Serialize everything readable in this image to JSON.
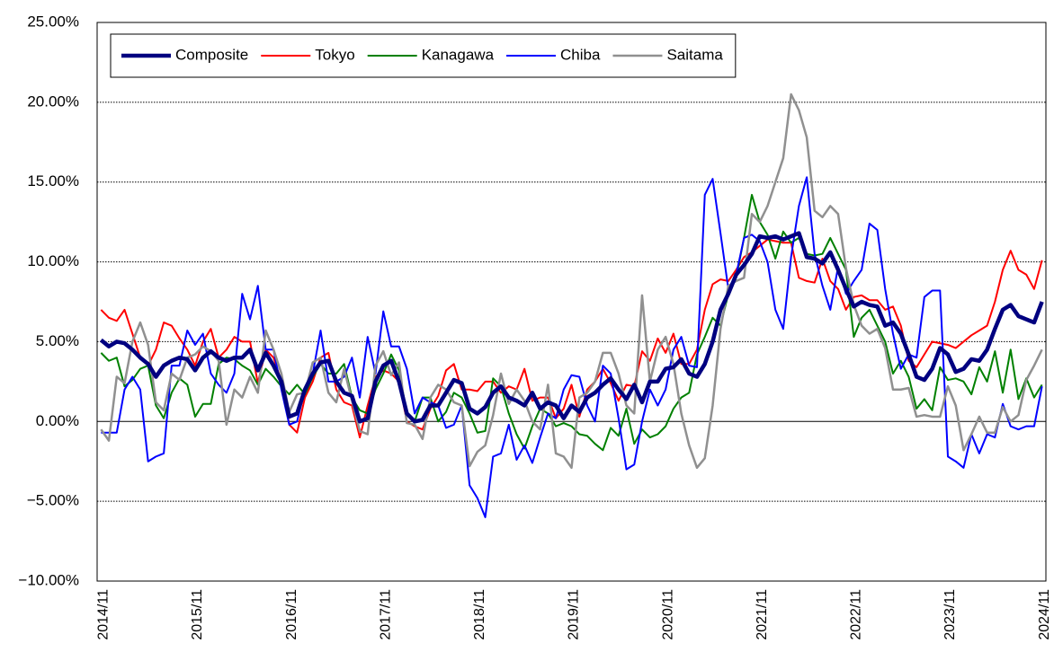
{
  "chart_data": {
    "type": "line",
    "categories": [
      "2014/11",
      null,
      null,
      null,
      null,
      null,
      null,
      null,
      null,
      null,
      null,
      null,
      "2015/11",
      null,
      null,
      null,
      null,
      null,
      null,
      null,
      null,
      null,
      null,
      null,
      "2016/11",
      null,
      null,
      null,
      null,
      null,
      null,
      null,
      null,
      null,
      null,
      null,
      "2017/11",
      null,
      null,
      null,
      null,
      null,
      null,
      null,
      null,
      null,
      null,
      null,
      "2018/11",
      null,
      null,
      null,
      null,
      null,
      null,
      null,
      null,
      null,
      null,
      null,
      "2019/11",
      null,
      null,
      null,
      null,
      null,
      null,
      null,
      null,
      null,
      null,
      null,
      "2020/11",
      null,
      null,
      null,
      null,
      null,
      null,
      null,
      null,
      null,
      null,
      null,
      "2021/11",
      null,
      null,
      null,
      null,
      null,
      null,
      null,
      null,
      null,
      null,
      null,
      "2022/11",
      null,
      null,
      null,
      null,
      null,
      null,
      null,
      null,
      null,
      null,
      null,
      "2023/11",
      null,
      null,
      null,
      null,
      null,
      null,
      null,
      null,
      null,
      null,
      null,
      "2024/11"
    ],
    "series": [
      {
        "name": "Composite",
        "color": "#000080",
        "width": 4.5,
        "values": [
          5.1,
          4.7,
          5.0,
          4.9,
          4.5,
          4.0,
          3.6,
          2.8,
          3.5,
          3.8,
          4.0,
          3.9,
          3.2,
          4.0,
          4.4,
          4.0,
          3.8,
          4.0,
          4.0,
          4.5,
          3.2,
          4.3,
          3.5,
          2.5,
          0.3,
          0.5,
          2.0,
          3.0,
          3.7,
          3.8,
          2.5,
          1.8,
          1.6,
          0.0,
          0.2,
          2.5,
          3.5,
          3.8,
          2.5,
          0.5,
          0.0,
          0.1,
          1.0,
          1.0,
          1.8,
          2.6,
          2.4,
          0.8,
          0.5,
          0.9,
          1.8,
          2.2,
          1.5,
          1.3,
          1.0,
          1.8,
          0.8,
          1.2,
          1.0,
          0.2,
          1.0,
          0.6,
          1.5,
          1.8,
          2.3,
          2.7,
          2.0,
          1.4,
          2.3,
          1.2,
          2.5,
          2.5,
          3.3,
          3.4,
          3.9,
          3.0,
          2.8,
          3.6,
          5.0,
          7.0,
          8.0,
          9.2,
          9.8,
          10.5,
          11.6,
          11.5,
          11.6,
          11.4,
          11.6,
          11.8,
          10.3,
          10.2,
          9.9,
          10.6,
          9.5,
          8.3,
          7.2,
          7.5,
          7.3,
          7.2,
          6.0,
          6.2,
          5.5,
          4.2,
          2.8,
          2.6,
          3.3,
          4.6,
          4.2,
          3.1,
          3.3,
          3.9,
          3.8,
          4.5,
          5.8,
          7.0,
          7.3,
          6.6,
          6.4,
          6.2,
          7.5
        ]
      },
      {
        "name": "Tokyo",
        "color": "#ff0000",
        "width": 2,
        "values": [
          7.0,
          6.5,
          6.3,
          7.0,
          5.5,
          4.0,
          3.5,
          4.5,
          6.2,
          6.0,
          5.2,
          4.5,
          3.5,
          5.0,
          5.8,
          4.0,
          4.5,
          5.3,
          5.0,
          5.0,
          2.4,
          4.5,
          4.0,
          2.5,
          -0.2,
          -0.7,
          1.5,
          2.5,
          4.0,
          4.3,
          2.0,
          1.2,
          1.0,
          -1.0,
          1.0,
          2.8,
          3.2,
          3.0,
          2.5,
          0.0,
          -0.3,
          -0.5,
          0.8,
          1.6,
          3.2,
          3.6,
          2.0,
          2.0,
          1.9,
          2.5,
          2.5,
          1.8,
          2.2,
          2.0,
          3.3,
          1.3,
          1.5,
          1.5,
          0.2,
          0.8,
          2.3,
          0.3,
          2.0,
          2.5,
          3.3,
          2.4,
          1.3,
          2.3,
          2.2,
          4.4,
          3.8,
          5.2,
          4.3,
          5.5,
          3.6,
          3.6,
          4.5,
          7.0,
          8.6,
          8.9,
          8.8,
          9.5,
          10.3,
          10.6,
          11.0,
          11.4,
          11.3,
          11.2,
          11.2,
          9.0,
          8.8,
          8.7,
          10.2,
          8.8,
          8.3,
          7.0,
          7.8,
          7.9,
          7.6,
          7.6,
          7.0,
          7.2,
          6.0,
          3.8,
          3.4,
          4.2,
          5.0,
          4.9,
          4.8,
          4.6,
          5.0,
          5.4,
          5.7,
          6.0,
          7.5,
          9.5,
          10.7,
          9.5,
          9.2,
          8.3,
          10.1
        ]
      },
      {
        "name": "Kanagawa",
        "color": "#008000",
        "width": 2,
        "values": [
          4.3,
          3.8,
          4.0,
          2.2,
          2.6,
          3.3,
          3.5,
          1.0,
          0.2,
          1.8,
          2.7,
          2.3,
          0.3,
          1.1,
          1.1,
          3.6,
          4.0,
          3.9,
          3.5,
          3.2,
          2.3,
          3.3,
          2.8,
          2.2,
          1.7,
          2.3,
          1.7,
          2.8,
          3.6,
          3.0,
          3.0,
          3.6,
          1.5,
          0.7,
          0.5,
          2.0,
          3.0,
          4.2,
          3.2,
          0.5,
          0.0,
          1.5,
          1.5,
          0.0,
          0.6,
          1.8,
          1.5,
          0.5,
          -0.7,
          -0.6,
          2.7,
          2.2,
          0.5,
          -0.8,
          -1.7,
          -0.3,
          0.8,
          0.5,
          -0.3,
          -0.1,
          -0.3,
          -0.8,
          -0.9,
          -1.4,
          -1.8,
          -0.4,
          -0.9,
          0.8,
          -1.4,
          -0.5,
          -1.0,
          -0.8,
          -0.3,
          0.8,
          1.5,
          1.8,
          4.2,
          5.3,
          6.5,
          6.0,
          8.0,
          9.0,
          11.5,
          14.2,
          12.5,
          11.7,
          10.2,
          11.9,
          11.2,
          11.5,
          10.5,
          10.4,
          10.5,
          11.5,
          10.5,
          9.5,
          5.3,
          6.5,
          7.0,
          6.0,
          5.0,
          3.0,
          3.8,
          2.8,
          0.8,
          1.4,
          0.7,
          3.4,
          2.6,
          2.7,
          2.5,
          1.7,
          3.4,
          2.5,
          4.4,
          1.8,
          4.5,
          1.4,
          2.7,
          1.5,
          2.3
        ]
      },
      {
        "name": "Chiba",
        "color": "#0000ff",
        "width": 2,
        "values": [
          -0.7,
          -0.7,
          -0.7,
          2.0,
          2.8,
          2.0,
          -2.5,
          -2.2,
          -2.0,
          3.5,
          3.5,
          5.7,
          4.8,
          5.5,
          3.0,
          2.3,
          1.8,
          3.0,
          8.0,
          6.4,
          8.5,
          4.5,
          4.5,
          2.0,
          -0.2,
          0.0,
          2.0,
          3.0,
          5.7,
          2.5,
          2.5,
          2.8,
          4.0,
          1.5,
          5.3,
          3.0,
          6.9,
          4.7,
          4.7,
          3.3,
          0.5,
          1.5,
          1.2,
          1.0,
          -0.4,
          -0.2,
          1.0,
          -4.0,
          -4.8,
          -6.0,
          -2.2,
          -2.0,
          -0.2,
          -2.4,
          -1.5,
          -2.6,
          -1.0,
          0.5,
          0.2,
          2.0,
          2.9,
          2.8,
          1.0,
          0.0,
          3.5,
          3.0,
          0.2,
          -3.0,
          -2.7,
          0.0,
          2.0,
          1.0,
          2.0,
          4.5,
          5.3,
          3.5,
          3.4,
          14.2,
          15.2,
          11.8,
          8.3,
          9.2,
          11.5,
          11.7,
          11.3,
          10.0,
          7.0,
          5.8,
          10.3,
          13.5,
          15.3,
          10.5,
          8.5,
          7.0,
          9.7,
          8.0,
          8.8,
          9.5,
          12.4,
          12.0,
          8.3,
          5.5,
          3.3,
          4.2,
          4.0,
          7.8,
          8.2,
          8.2,
          -2.2,
          -2.5,
          -2.9,
          -0.8,
          -2.0,
          -0.8,
          -1.0,
          1.1,
          -0.3,
          -0.5,
          -0.3,
          -0.3,
          2.2
        ]
      },
      {
        "name": "Saitama",
        "color": "#909090",
        "width": 2.5,
        "values": [
          -0.5,
          -1.2,
          2.8,
          2.4,
          5.0,
          6.2,
          4.8,
          1.2,
          0.7,
          3.0,
          2.6,
          4.0,
          4.2,
          4.7,
          4.4,
          3.8,
          -0.2,
          2.0,
          1.5,
          2.8,
          1.8,
          5.7,
          4.5,
          3.0,
          0.6,
          1.7,
          1.8,
          3.7,
          4.0,
          1.8,
          1.2,
          3.3,
          1.3,
          -0.6,
          -0.8,
          3.5,
          4.4,
          2.9,
          3.7,
          -0.1,
          -0.2,
          -1.1,
          1.5,
          2.3,
          2.0,
          1.2,
          1.0,
          -2.8,
          -1.9,
          -1.5,
          0.4,
          3.0,
          1.1,
          2.0,
          1.3,
          0.0,
          -0.5,
          2.3,
          -2.0,
          -2.2,
          -2.9,
          1.5,
          1.8,
          2.5,
          4.3,
          4.3,
          3.0,
          1.0,
          0.5,
          7.9,
          2.5,
          4.5,
          5.3,
          3.6,
          0.5,
          -1.5,
          -2.9,
          -2.3,
          1.0,
          5.8,
          8.5,
          8.8,
          9.0,
          13.0,
          12.5,
          13.5,
          15.0,
          16.5,
          20.5,
          19.5,
          17.8,
          13.2,
          12.8,
          13.5,
          13.0,
          9.6,
          7.3,
          6.0,
          5.5,
          5.8,
          4.6,
          2.0,
          2.0,
          2.1,
          0.3,
          0.4,
          0.3,
          0.3,
          2.2,
          1.0,
          -1.8,
          -0.8,
          0.3,
          -0.7,
          -0.7,
          0.9,
          0.0,
          0.4,
          2.6,
          3.5,
          4.5
        ]
      }
    ],
    "ylim": [
      -10,
      25
    ],
    "yticks": [
      {
        "value": -10,
        "label": "−10.00%"
      },
      {
        "value": -5,
        "label": "−5.00%"
      },
      {
        "value": 0,
        "label": "0.00%"
      },
      {
        "value": 5,
        "label": "5.00%"
      },
      {
        "value": 10,
        "label": "10.00%"
      },
      {
        "value": 15,
        "label": "15.00%"
      },
      {
        "value": 20,
        "label": "20.00%"
      },
      {
        "value": 25,
        "label": "25.00%"
      }
    ],
    "grid": true,
    "legend": "top-left"
  }
}
